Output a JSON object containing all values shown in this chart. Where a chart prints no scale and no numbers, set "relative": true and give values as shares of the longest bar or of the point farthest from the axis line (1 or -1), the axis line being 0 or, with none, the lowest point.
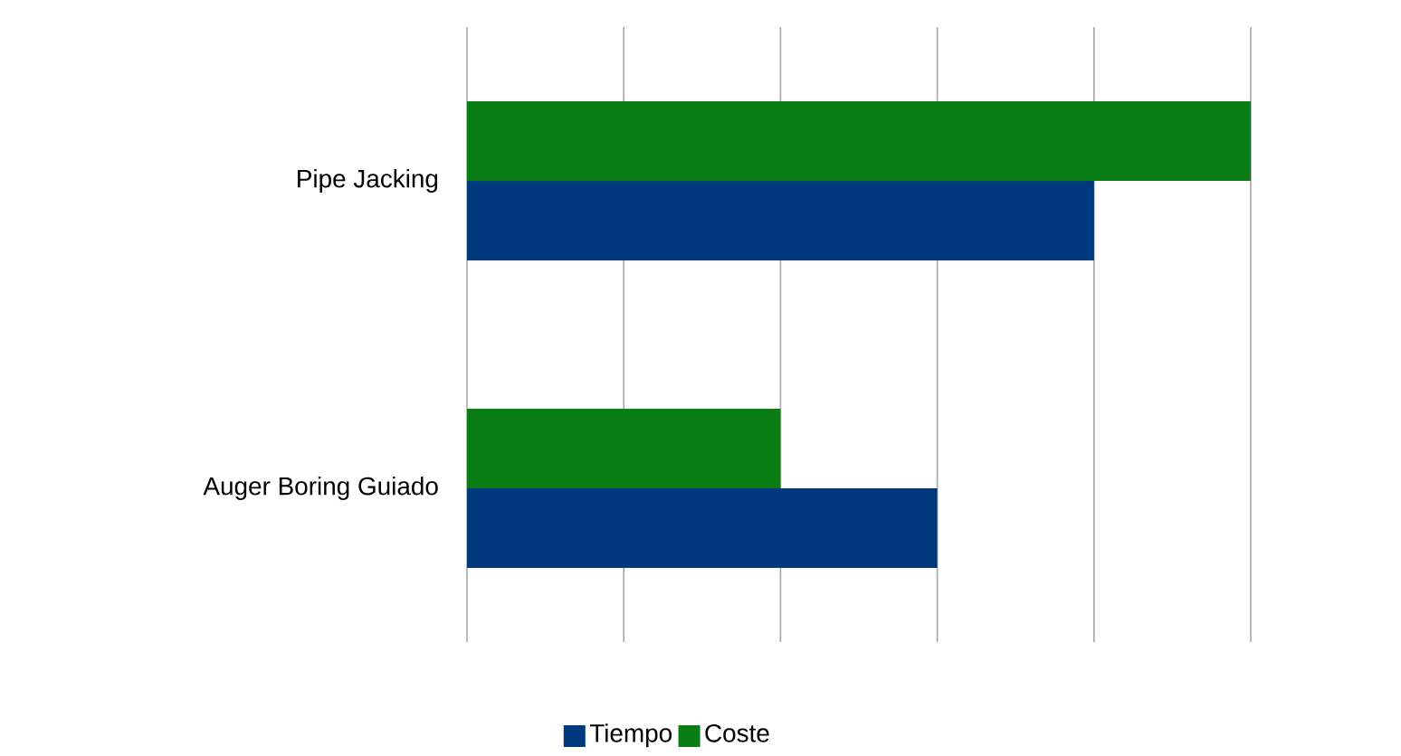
{
  "chart_data": {
    "type": "bar",
    "orientation": "horizontal",
    "relative": true,
    "grid": "x",
    "legend": "bottom",
    "categories": [
      "Pipe Jacking",
      "Auger Boring Guiado"
    ],
    "series": [
      {
        "name": "Tiempo",
        "color": "#003a7d",
        "values": [
          0.8,
          0.6
        ]
      },
      {
        "name": "Coste",
        "color": "#0a7d14",
        "values": [
          1.0,
          0.4
        ]
      }
    ]
  }
}
